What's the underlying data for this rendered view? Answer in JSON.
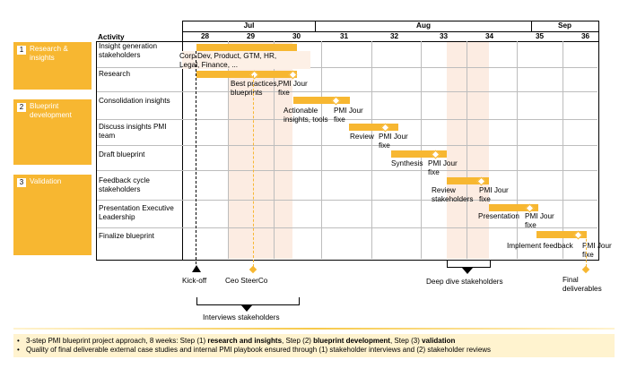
{
  "phases": [
    {
      "num": "1",
      "label_lines": [
        "Research &",
        "insights"
      ]
    },
    {
      "num": "2",
      "label_lines": [
        "Blueprint",
        "development"
      ]
    },
    {
      "num": "3",
      "label_lines": [
        "Validation"
      ]
    }
  ],
  "header": {
    "activity": "Activity",
    "months": [
      "Jul",
      "Aug",
      "Sep"
    ],
    "weeks": [
      "28",
      "29",
      "30",
      "31",
      "32",
      "33",
      "34",
      "35",
      "36"
    ]
  },
  "activities": [
    {
      "lines": [
        "Insight generation",
        "stakeholders"
      ]
    },
    {
      "lines": [
        "Research"
      ]
    },
    {
      "lines": [
        "Consolidation insights"
      ]
    },
    {
      "lines": [
        "Discuss insights PMI",
        "team"
      ]
    },
    {
      "lines": [
        "Draft blueprint"
      ]
    },
    {
      "lines": [
        "Feedback cycle",
        "stakeholders"
      ]
    },
    {
      "lines": [
        "Presentation Executive",
        "Leadership"
      ]
    },
    {
      "lines": [
        "Finalize blueprint"
      ]
    }
  ],
  "annotations": {
    "corp_dev": [
      "Corp Dev, Product, GTM, HR,",
      "Legal, Finance, ..."
    ],
    "best_practices": [
      "Best practices,",
      "blueprints"
    ],
    "pmi_jour_fixe": [
      "PMI Jour",
      "fixe"
    ],
    "actionable": [
      "Actionable",
      "insights, tools"
    ],
    "review": "Review",
    "synthesis": "Synthesis",
    "review_stakeholders": [
      "Review",
      "stakeholders"
    ],
    "presentation": "Presentation",
    "implement_feedback": "Implement feedback"
  },
  "milestones": {
    "kickoff": "Kick-off",
    "ceo_steerco": "Ceo SteerCo",
    "deep_dive": "Deep dive stakeholders",
    "final": [
      "Final",
      "deliverables"
    ],
    "interviews": "Interviews stakeholders"
  },
  "notes": {
    "line1_prefix": "3-step PMI blueprint project approach, 8 weeks: Step (1) ",
    "line1_bold1": "research and insights",
    "line1_mid": ", Step (2) ",
    "line1_bold2": "blueprint development",
    "line1_mid2": ", Step (3) ",
    "line1_bold3": "validation",
    "line2": "Quality of final deliverable external case studies and internal PMI playbook ensured through (1) stakeholder interviews and (2) stakeholder reviews"
  },
  "colors": {
    "accent": "#f7b731",
    "shade": "#fbe6d8",
    "note_bg": "#fff3cf"
  }
}
